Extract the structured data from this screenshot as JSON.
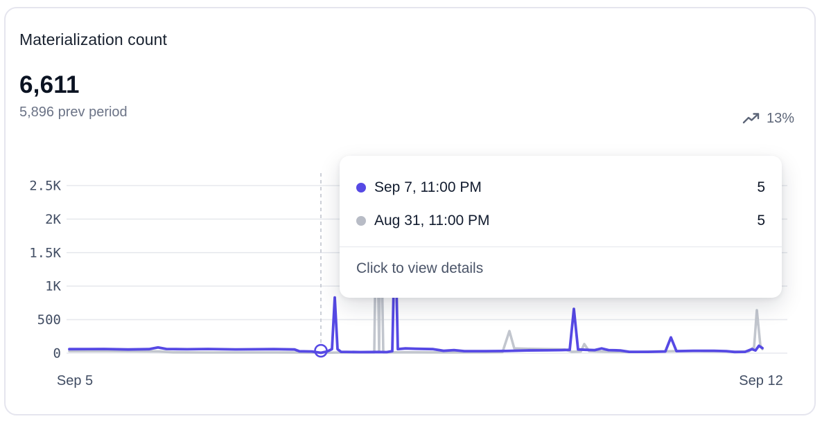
{
  "card": {
    "title": "Materialization count",
    "value": "6,611",
    "prev_period": "5,896 prev period",
    "trend_percent": "13%"
  },
  "tooltip": {
    "rows": [
      {
        "series": "current",
        "dot_color": "#5649e4",
        "label": "Sep 7, 11:00 PM",
        "value": "5"
      },
      {
        "series": "previous",
        "dot_color": "#b8bcc6",
        "label": "Aug 31, 11:00 PM",
        "value": "5"
      }
    ],
    "footer": "Click to view details"
  },
  "colors": {
    "accent": "#5649e4",
    "previous_series": "#c2c6ce",
    "grid": "#e7e9ee",
    "axis_text": "#414d63",
    "guideline": "#c7cbd4",
    "card_border": "#e5e5ee",
    "trend_text": "#5d6678"
  },
  "chart_data": {
    "type": "line",
    "title": "Materialization count",
    "ylabel": "",
    "xlabel": "",
    "ylim": [
      0,
      2500
    ],
    "grid": true,
    "legend": false,
    "y_axis": {
      "tick_values": [
        0,
        500,
        1000,
        1500,
        2000,
        2500
      ],
      "tick_labels": [
        "0",
        "500",
        "1K",
        "1.5K",
        "2K",
        "2.5K"
      ]
    },
    "x_axis": {
      "tick_labels": [
        "Sep 5",
        "Sep 12"
      ],
      "tick_positions": [
        0.008,
        0.998
      ]
    },
    "hover": {
      "x_frac": 0.363,
      "marker_value": 5,
      "current_label": "Sep 7, 11:00 PM",
      "current_value": 5,
      "previous_label": "Aug 31, 11:00 PM",
      "previous_value": 5
    },
    "series": [
      {
        "name": "Previous period",
        "color": "#c2c6ce",
        "points": [
          [
            0.0,
            30
          ],
          [
            0.06,
            30
          ],
          [
            0.13,
            25
          ],
          [
            0.15,
            12
          ],
          [
            0.2,
            10
          ],
          [
            0.3,
            10
          ],
          [
            0.355,
            8
          ],
          [
            0.363,
            5
          ],
          [
            0.4,
            10
          ],
          [
            0.44,
            12
          ],
          [
            0.4435,
            2600
          ],
          [
            0.447,
            15
          ],
          [
            0.449,
            2450
          ],
          [
            0.453,
            12
          ],
          [
            0.5,
            12
          ],
          [
            0.55,
            10
          ],
          [
            0.6,
            12
          ],
          [
            0.625,
            15
          ],
          [
            0.635,
            330
          ],
          [
            0.642,
            70
          ],
          [
            0.66,
            65
          ],
          [
            0.69,
            60
          ],
          [
            0.715,
            55
          ],
          [
            0.725,
            20
          ],
          [
            0.738,
            25
          ],
          [
            0.743,
            135
          ],
          [
            0.75,
            30
          ],
          [
            0.78,
            20
          ],
          [
            0.82,
            18
          ],
          [
            0.85,
            25
          ],
          [
            0.875,
            30
          ],
          [
            0.91,
            30
          ],
          [
            0.94,
            28
          ],
          [
            0.96,
            20
          ],
          [
            0.98,
            25
          ],
          [
            0.988,
            90
          ],
          [
            0.992,
            640
          ],
          [
            0.997,
            120
          ],
          [
            1.0,
            60
          ]
        ]
      },
      {
        "name": "Current period",
        "color": "#5649e4",
        "points": [
          [
            0.0,
            60
          ],
          [
            0.05,
            62
          ],
          [
            0.085,
            55
          ],
          [
            0.115,
            60
          ],
          [
            0.128,
            85
          ],
          [
            0.14,
            62
          ],
          [
            0.17,
            58
          ],
          [
            0.2,
            62
          ],
          [
            0.24,
            56
          ],
          [
            0.295,
            60
          ],
          [
            0.325,
            55
          ],
          [
            0.332,
            28
          ],
          [
            0.35,
            25
          ],
          [
            0.363,
            5
          ],
          [
            0.372,
            25
          ],
          [
            0.379,
            60
          ],
          [
            0.383,
            830
          ],
          [
            0.387,
            60
          ],
          [
            0.392,
            20
          ],
          [
            0.42,
            15
          ],
          [
            0.445,
            18
          ],
          [
            0.458,
            15
          ],
          [
            0.466,
            30
          ],
          [
            0.47,
            1900
          ],
          [
            0.474,
            60
          ],
          [
            0.485,
            70
          ],
          [
            0.5,
            65
          ],
          [
            0.525,
            60
          ],
          [
            0.54,
            35
          ],
          [
            0.555,
            45
          ],
          [
            0.57,
            30
          ],
          [
            0.6,
            30
          ],
          [
            0.63,
            32
          ],
          [
            0.66,
            40
          ],
          [
            0.69,
            42
          ],
          [
            0.71,
            45
          ],
          [
            0.722,
            50
          ],
          [
            0.728,
            660
          ],
          [
            0.734,
            55
          ],
          [
            0.745,
            50
          ],
          [
            0.758,
            45
          ],
          [
            0.768,
            70
          ],
          [
            0.778,
            45
          ],
          [
            0.795,
            40
          ],
          [
            0.808,
            20
          ],
          [
            0.835,
            20
          ],
          [
            0.86,
            25
          ],
          [
            0.868,
            235
          ],
          [
            0.876,
            30
          ],
          [
            0.9,
            35
          ],
          [
            0.93,
            35
          ],
          [
            0.948,
            30
          ],
          [
            0.96,
            18
          ],
          [
            0.975,
            20
          ],
          [
            0.985,
            60
          ],
          [
            0.99,
            40
          ],
          [
            0.995,
            110
          ],
          [
            1.0,
            75
          ]
        ]
      }
    ]
  }
}
